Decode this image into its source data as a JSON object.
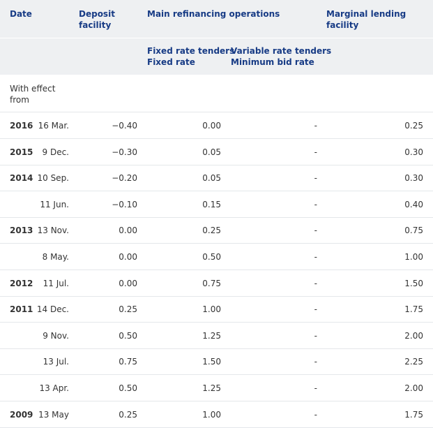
{
  "header": {
    "date": "Date",
    "deposit_facility": [
      "Deposit",
      "facility"
    ],
    "main_refinancing": "Main refinancing operations",
    "marginal_lending": [
      "Marginal lending",
      "facility"
    ],
    "fixed_rate_tenders": [
      "Fixed rate tenders",
      "Fixed rate"
    ],
    "variable_rate_tenders": [
      "Variable rate tenders",
      "Minimum bid rate"
    ]
  },
  "with_effect_from": "With effect from",
  "rows": [
    {
      "year": "2016",
      "date": "16 Mar.",
      "deposit": "−0.40",
      "fixed": "0.00",
      "variable": "-",
      "marginal": "0.25"
    },
    {
      "year": "2015",
      "date": "9 Dec.",
      "deposit": "−0.30",
      "fixed": "0.05",
      "variable": "-",
      "marginal": "0.30"
    },
    {
      "year": "2014",
      "date": "10 Sep.",
      "deposit": "−0.20",
      "fixed": "0.05",
      "variable": "-",
      "marginal": "0.30"
    },
    {
      "year": "",
      "date": "11 Jun.",
      "deposit": "−0.10",
      "fixed": "0.15",
      "variable": "-",
      "marginal": "0.40"
    },
    {
      "year": "2013",
      "date": "13 Nov.",
      "deposit": "0.00",
      "fixed": "0.25",
      "variable": "-",
      "marginal": "0.75"
    },
    {
      "year": "",
      "date": "8 May.",
      "deposit": "0.00",
      "fixed": "0.50",
      "variable": "-",
      "marginal": "1.00"
    },
    {
      "year": "2012",
      "date": "11 Jul.",
      "deposit": "0.00",
      "fixed": "0.75",
      "variable": "-",
      "marginal": "1.50"
    },
    {
      "year": "2011",
      "date": "14 Dec.",
      "deposit": "0.25",
      "fixed": "1.00",
      "variable": "-",
      "marginal": "1.75"
    },
    {
      "year": "",
      "date": "9 Nov.",
      "deposit": "0.50",
      "fixed": "1.25",
      "variable": "-",
      "marginal": "2.00"
    },
    {
      "year": "",
      "date": "13 Jul.",
      "deposit": "0.75",
      "fixed": "1.50",
      "variable": "-",
      "marginal": "2.25"
    },
    {
      "year": "",
      "date": "13 Apr.",
      "deposit": "0.50",
      "fixed": "1.25",
      "variable": "-",
      "marginal": "2.00"
    },
    {
      "year": "2009",
      "date": "13 May",
      "deposit": "0.25",
      "fixed": "1.00",
      "variable": "-",
      "marginal": "1.75"
    }
  ]
}
